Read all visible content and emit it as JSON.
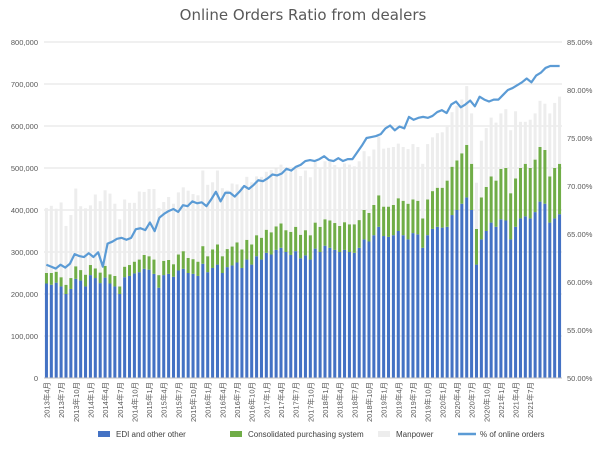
{
  "chart_data": {
    "type": "bar",
    "stacked": true,
    "title": "Online Orders Ratio from dealers",
    "xlabel": "",
    "ylabel": "",
    "ylim": [
      0,
      800000
    ],
    "y2lim": [
      0.5,
      0.85
    ],
    "grid": true,
    "legend_position": "bottom",
    "y_ticks": [
      "0",
      "100,000",
      "200,000",
      "300,000",
      "400,000",
      "500,000",
      "600,000",
      "700,000",
      "800,000"
    ],
    "y2_ticks": [
      "50.00%",
      "55.00%",
      "60.00%",
      "65.00%",
      "70.00%",
      "75.00%",
      "80.00%",
      "85.00%"
    ],
    "x_tick_labels": [
      "2013年4月",
      "2013年7月",
      "2013年10月",
      "2014年1月",
      "2014年4月",
      "2014年7月",
      "2014年10月",
      "2015年1月",
      "2015年4月",
      "2015年7月",
      "2015年10月",
      "2016年1月",
      "2016年4月",
      "2016年7月",
      "2016年10月",
      "2017年1月",
      "2017年4月",
      "2017年7月",
      "2017年10月",
      "2018年1月",
      "2018年4月",
      "2018年7月",
      "2018年10月",
      "2019年1月",
      "2019年4月",
      "2019年7月",
      "2019年10月",
      "2020年1月",
      "2020年4月",
      "2020年7月",
      "2020年10月",
      "2021年1月",
      "2021年4月",
      "2021年7月"
    ],
    "colors": {
      "edi": "#4472c4",
      "consolidated": "#70ad47",
      "manpower": "#ededed",
      "pct": "#5b9bd5"
    },
    "series": [
      {
        "name": "EDI and other other",
        "type": "bar",
        "values": [
          225000,
          222000,
          227000,
          218000,
          200000,
          212000,
          236000,
          232000,
          218000,
          245000,
          238000,
          226000,
          239000,
          225000,
          218000,
          200000,
          240000,
          243000,
          249000,
          252000,
          260000,
          258000,
          248000,
          215000,
          245000,
          248000,
          241000,
          256000,
          260000,
          250000,
          248000,
          243000,
          272000,
          252000,
          262000,
          270000,
          250000,
          264000,
          268000,
          275000,
          262000,
          282000,
          270000,
          290000,
          282000,
          298000,
          294000,
          305000,
          310000,
          300000,
          293000,
          302000,
          285000,
          292000,
          282000,
          308000,
          300000,
          315000,
          310000,
          305000,
          300000,
          305000,
          300000,
          298000,
          310000,
          330000,
          325000,
          340000,
          360000,
          338000,
          336000,
          340000,
          350000,
          340000,
          330000,
          345000,
          342000,
          310000,
          340000,
          355000,
          360000,
          358000,
          360000,
          388000,
          400000,
          415000,
          430000,
          400000,
          270000,
          330000,
          350000,
          370000,
          360000,
          378000,
          375000,
          330000,
          360000,
          380000,
          385000,
          380000,
          395000,
          420000,
          415000,
          370000,
          380000,
          390000
        ]
      },
      {
        "name": "Consolidated purchasing system",
        "type": "bar",
        "values": [
          25000,
          28000,
          26000,
          22000,
          22000,
          26000,
          30000,
          25000,
          28000,
          24000,
          23000,
          25000,
          28000,
          22000,
          25000,
          18000,
          25000,
          26000,
          28000,
          30000,
          33000,
          32000,
          34000,
          30000,
          34000,
          33000,
          30000,
          38000,
          42000,
          36000,
          35000,
          34000,
          42000,
          38000,
          44000,
          48000,
          40000,
          43000,
          45000,
          48000,
          44000,
          47000,
          48000,
          50000,
          52000,
          55000,
          53000,
          56000,
          58000,
          52000,
          55000,
          58000,
          56000,
          60000,
          58000,
          62000,
          60000,
          63000,
          65000,
          64000,
          62000,
          66000,
          66000,
          68000,
          66000,
          70000,
          68000,
          72000,
          75000,
          70000,
          72000,
          72000,
          78000,
          82000,
          85000,
          80000,
          80000,
          70000,
          85000,
          90000,
          93000,
          95000,
          110000,
          115000,
          118000,
          120000,
          125000,
          110000,
          85000,
          100000,
          105000,
          110000,
          110000,
          120000,
          125000,
          110000,
          115000,
          120000,
          125000,
          120000,
          125000,
          130000,
          128000,
          110000,
          120000,
          120000
        ]
      },
      {
        "name": "Manpower",
        "type": "bar",
        "values": [
          155000,
          160000,
          150000,
          178000,
          140000,
          150000,
          185000,
          152000,
          158000,
          142000,
          176000,
          170000,
          180000,
          192000,
          172000,
          160000,
          160000,
          148000,
          140000,
          162000,
          150000,
          160000,
          168000,
          160000,
          140000,
          150000,
          144000,
          148000,
          152000,
          160000,
          155000,
          158000,
          180000,
          170000,
          160000,
          176000,
          162000,
          140000,
          150000,
          138000,
          150000,
          150000,
          148000,
          140000,
          145000,
          138000,
          148000,
          138000,
          140000,
          140000,
          142000,
          145000,
          140000,
          142000,
          138000,
          144000,
          140000,
          138000,
          140000,
          138000,
          140000,
          140000,
          142000,
          138000,
          140000,
          140000,
          135000,
          132000,
          140000,
          138000,
          140000,
          138000,
          130000,
          128000,
          130000,
          132000,
          128000,
          130000,
          132000,
          128000,
          130000,
          132000,
          128000,
          130000,
          130000,
          128000,
          140000,
          120000,
          110000,
          135000,
          140000,
          140000,
          138000,
          132000,
          140000,
          150000,
          160000,
          110000,
          100000,
          115000,
          110000,
          110000,
          110000,
          150000,
          155000,
          160000
        ]
      },
      {
        "name": "% of online orders",
        "type": "line",
        "axis": "right",
        "values": [
          0.618,
          0.616,
          0.614,
          0.618,
          0.615,
          0.619,
          0.629,
          0.627,
          0.626,
          0.63,
          0.626,
          0.631,
          0.616,
          0.64,
          0.642,
          0.645,
          0.646,
          0.644,
          0.646,
          0.655,
          0.656,
          0.654,
          0.662,
          0.653,
          0.667,
          0.671,
          0.674,
          0.676,
          0.673,
          0.68,
          0.679,
          0.684,
          0.682,
          0.683,
          0.679,
          0.686,
          0.694,
          0.684,
          0.693,
          0.693,
          0.689,
          0.694,
          0.7,
          0.697,
          0.701,
          0.706,
          0.705,
          0.708,
          0.712,
          0.711,
          0.713,
          0.718,
          0.716,
          0.72,
          0.722,
          0.726,
          0.727,
          0.726,
          0.728,
          0.731,
          0.727,
          0.726,
          0.729,
          0.726,
          0.728,
          0.728,
          0.735,
          0.742,
          0.75,
          0.751,
          0.752,
          0.754,
          0.76,
          0.763,
          0.758,
          0.762,
          0.76,
          0.772,
          0.769,
          0.771,
          0.772,
          0.771,
          0.773,
          0.777,
          0.779,
          0.776,
          0.785,
          0.788,
          0.782,
          0.785,
          0.789,
          0.783,
          0.793,
          0.79,
          0.788,
          0.79,
          0.79,
          0.795,
          0.8,
          0.802,
          0.805,
          0.808,
          0.812,
          0.808,
          0.815,
          0.818,
          0.823,
          0.825,
          0.825,
          0.825
        ]
      }
    ]
  }
}
